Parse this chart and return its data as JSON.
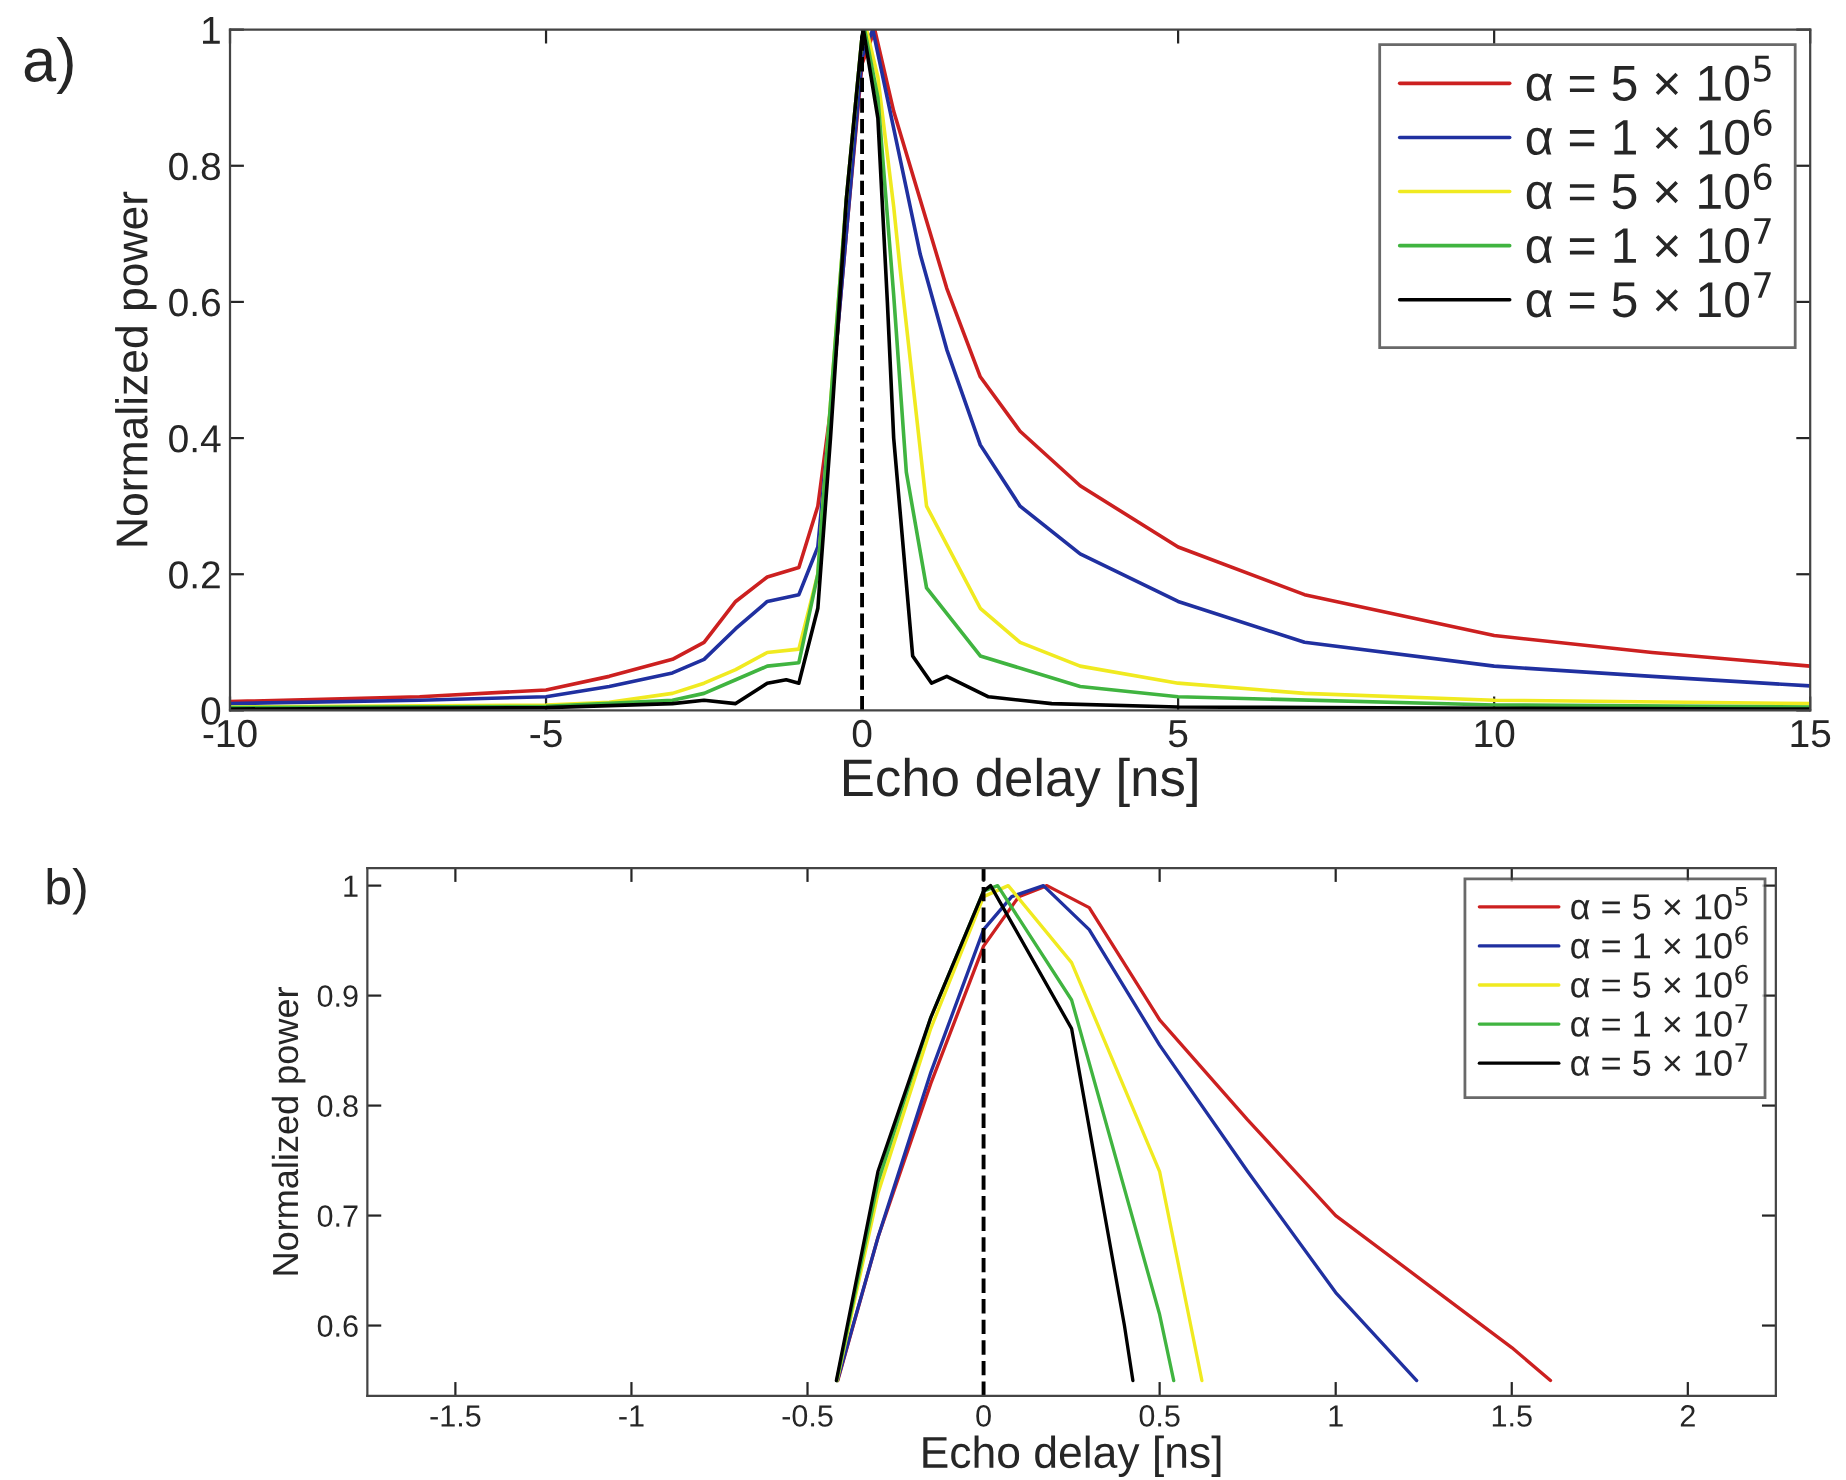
{
  "chart_data": [
    {
      "type": "line",
      "xlabel": "Echo delay [ns]",
      "ylabel": "Normalized power",
      "annotations": [
        "a)"
      ],
      "xlim": [
        -10,
        15
      ],
      "ylim": [
        0,
        1
      ],
      "xticks": [
        -10,
        -5,
        0,
        5,
        10,
        15
      ],
      "yticks": [
        0,
        0.2,
        0.4,
        0.6,
        0.8,
        1
      ],
      "grid": false,
      "legend": "top right",
      "ref_lines": [
        {
          "axis": "x",
          "value": 0,
          "color": "#000000",
          "line_style": "dashed"
        }
      ],
      "series": [
        {
          "name": "α = 5 × 10$^{5}$",
          "color": "#cc2020",
          "x": [
            -10,
            -7,
            -5,
            -4,
            -3,
            -2.5,
            -2,
            -1.5,
            -1,
            -0.7,
            -0.5,
            -0.25,
            0,
            0.2,
            0.5,
            0.92,
            1.34,
            1.87,
            2.5,
            3.45,
            5,
            7,
            10,
            12.5,
            15
          ],
          "values": [
            0.013,
            0.02,
            0.03,
            0.05,
            0.075,
            0.1,
            0.16,
            0.196,
            0.21,
            0.3,
            0.44,
            0.7,
            0.95,
            1.0,
            0.88,
            0.75,
            0.62,
            0.49,
            0.41,
            0.33,
            0.24,
            0.17,
            0.11,
            0.085,
            0.065
          ]
        },
        {
          "name": "α = 1 × 10$^{6}$",
          "color": "#2030a0",
          "x": [
            -10,
            -7,
            -5,
            -4,
            -3,
            -2.5,
            -2,
            -1.5,
            -1,
            -0.7,
            -0.5,
            -0.25,
            0,
            0.17,
            0.5,
            0.92,
            1.34,
            1.87,
            2.5,
            3.45,
            5,
            7,
            10,
            12.5,
            15
          ],
          "values": [
            0.01,
            0.015,
            0.02,
            0.035,
            0.055,
            0.075,
            0.12,
            0.16,
            0.17,
            0.24,
            0.44,
            0.7,
            0.96,
            1.0,
            0.855,
            0.67,
            0.53,
            0.39,
            0.3,
            0.23,
            0.16,
            0.1,
            0.065,
            0.05,
            0.036
          ]
        },
        {
          "name": "α = 5 × 10$^{6}$",
          "color": "#f0ea20",
          "x": [
            -10,
            -5,
            -4,
            -3,
            -2.5,
            -2,
            -1.5,
            -1,
            -0.7,
            -0.5,
            -0.25,
            0,
            0.07,
            0.25,
            0.5,
            0.6,
            1.02,
            1.87,
            2.5,
            3.45,
            5,
            7,
            10,
            15
          ],
          "values": [
            0.005,
            0.008,
            0.012,
            0.025,
            0.04,
            0.06,
            0.085,
            0.09,
            0.2,
            0.45,
            0.75,
            0.99,
            1.0,
            0.93,
            0.74,
            0.65,
            0.3,
            0.15,
            0.1,
            0.065,
            0.04,
            0.025,
            0.015,
            0.01
          ]
        },
        {
          "name": "α = 1 × 10$^{7}$",
          "color": "#40b440",
          "x": [
            -10,
            -5,
            -3,
            -2.5,
            -2,
            -1.5,
            -1,
            -0.7,
            -0.5,
            -0.25,
            0,
            0.04,
            0.25,
            0.5,
            0.7,
            1.02,
            1.87,
            3.45,
            5,
            10,
            15
          ],
          "values": [
            0.004,
            0.006,
            0.015,
            0.025,
            0.045,
            0.065,
            0.07,
            0.2,
            0.45,
            0.75,
            0.99,
            1.0,
            0.9,
            0.61,
            0.35,
            0.18,
            0.08,
            0.035,
            0.02,
            0.008,
            0.005
          ]
        },
        {
          "name": "α = 5 × 10$^{7}$",
          "color": "#000000",
          "x": [
            -10,
            -5,
            -3,
            -2.5,
            -2,
            -1.5,
            -1.2,
            -1,
            -0.7,
            -0.5,
            -0.25,
            0,
            0.02,
            0.25,
            0.4,
            0.5,
            0.8,
            1.1,
            1.34,
            2,
            3,
            5,
            10,
            15
          ],
          "values": [
            0.002,
            0.004,
            0.01,
            0.015,
            0.01,
            0.04,
            0.045,
            0.04,
            0.15,
            0.4,
            0.75,
            0.99,
            1.0,
            0.87,
            0.6,
            0.4,
            0.08,
            0.04,
            0.05,
            0.02,
            0.01,
            0.005,
            0.003,
            0.002
          ]
        }
      ]
    },
    {
      "type": "line",
      "xlabel": "Echo delay [ns]",
      "ylabel": "Normalized power",
      "annotations": [
        "b)"
      ],
      "xlim": [
        -1.75,
        2.25
      ],
      "ylim": [
        0.536,
        1.016
      ],
      "xticks": [
        -1.5,
        -1,
        -0.5,
        0,
        0.5,
        1,
        1.5,
        2
      ],
      "yticks": [
        0.6,
        0.7,
        0.8,
        0.9,
        1
      ],
      "grid": false,
      "legend": "top right",
      "ref_lines": [
        {
          "axis": "x",
          "value": 0,
          "color": "#000000",
          "line_style": "dashed"
        }
      ],
      "series": [
        {
          "name": "α = 5 × 10$^{5}$",
          "color": "#cc2020",
          "x": [
            -0.414,
            -0.3,
            -0.15,
            0,
            0.1,
            0.18,
            0.3,
            0.5,
            0.75,
            1.0,
            1.25,
            1.5,
            1.61
          ],
          "values": [
            0.55,
            0.68,
            0.82,
            0.945,
            0.99,
            1.0,
            0.98,
            0.878,
            0.787,
            0.7,
            0.64,
            0.58,
            0.55
          ]
        },
        {
          "name": "α = 1 × 10$^{6}$",
          "color": "#2030a0",
          "x": [
            -0.415,
            -0.3,
            -0.15,
            0,
            0.08,
            0.17,
            0.3,
            0.5,
            0.75,
            1.0,
            1.23
          ],
          "values": [
            0.55,
            0.68,
            0.83,
            0.96,
            0.99,
            1.0,
            0.96,
            0.855,
            0.74,
            0.63,
            0.55
          ]
        },
        {
          "name": "α = 5 × 10$^{6}$",
          "color": "#f0ea20",
          "x": [
            -0.416,
            -0.3,
            -0.15,
            0,
            0.07,
            0.25,
            0.5,
            0.62
          ],
          "values": [
            0.55,
            0.72,
            0.87,
            0.99,
            1.0,
            0.93,
            0.74,
            0.55
          ]
        },
        {
          "name": "α = 1 × 10$^{7}$",
          "color": "#40b440",
          "x": [
            -0.417,
            -0.3,
            -0.15,
            0,
            0.04,
            0.25,
            0.5,
            0.54
          ],
          "values": [
            0.55,
            0.73,
            0.88,
            0.995,
            1.0,
            0.896,
            0.61,
            0.55
          ]
        },
        {
          "name": "α = 5 × 10$^{7}$",
          "color": "#000000",
          "x": [
            -0.418,
            -0.3,
            -0.15,
            0,
            0.02,
            0.25,
            0.4,
            0.424
          ],
          "values": [
            0.55,
            0.74,
            0.88,
            0.995,
            1.0,
            0.87,
            0.6,
            0.55
          ]
        }
      ]
    }
  ]
}
